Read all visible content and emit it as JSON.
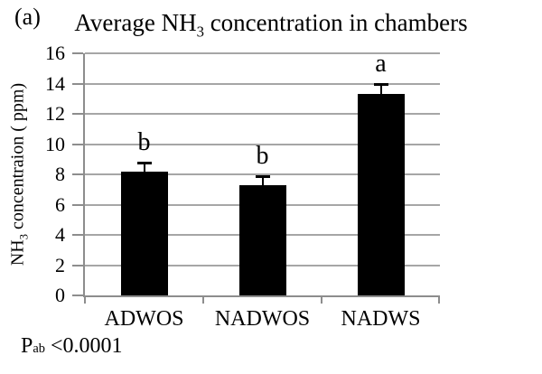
{
  "chart_data": {
    "type": "bar",
    "panel_label": "(a)",
    "title": "Average NH3 concentration in chambers",
    "title_parts": {
      "pre": "Average NH",
      "sub": "3",
      "post": " concentration in chambers"
    },
    "ylabel": "NH3 concentraion ( ppm)",
    "ylabel_parts": {
      "pre": "NH",
      "sub": "3",
      "post": " concentraion ( ppm)"
    },
    "xlabel": "",
    "categories": [
      "ADWOS",
      "NADWOS",
      "NADWS"
    ],
    "values": [
      8.2,
      7.3,
      13.3
    ],
    "errors": [
      0.5,
      0.55,
      0.6
    ],
    "sig_letters": [
      "b",
      "b",
      "a"
    ],
    "ylim": [
      0,
      16
    ],
    "ytick_step": 2,
    "yticks": [
      0,
      2,
      4,
      6,
      8,
      10,
      12,
      14,
      16
    ],
    "grid": true,
    "legend_position": "none",
    "p_annotation": {
      "pre": "P",
      "sub": "ab",
      "post": " <0.0001",
      "plain": "Pab <0.0001"
    },
    "colors": {
      "bar": "#000000",
      "error_bar": "#000000",
      "gridline": "#a6a6a6",
      "axis": "#8d8d8d",
      "text": "#000000",
      "background": "#ffffff"
    }
  }
}
